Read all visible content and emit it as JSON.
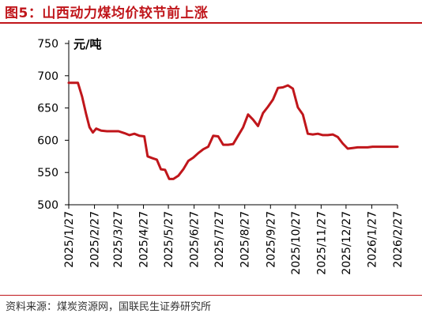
{
  "title": "图5：山西动力煤均价较节前上涨",
  "source": "资料来源：煤炭资源网，国联民生证券研究所",
  "colors": {
    "title": "#c0161b",
    "series": "#c0161b"
  },
  "chart_data": {
    "type": "line",
    "ylabel": "元/吨",
    "ylim": [
      500,
      750
    ],
    "yticks": [
      500,
      550,
      600,
      650,
      700,
      750
    ],
    "xlim": [
      "2025-01-27",
      "2026-02-27"
    ],
    "xtick_labels": [
      "2025/1/27",
      "2025/2/27",
      "2025/3/27",
      "2025/4/27",
      "2025/5/27",
      "2025/6/27",
      "2025/7/27",
      "2025/8/27",
      "2025/9/27",
      "2025/10/27",
      "2025/11/27",
      "2025/12/27",
      "2026/1/27",
      "2026/2/27"
    ],
    "grid": false,
    "legend": false,
    "series": [
      {
        "x": [
          "2025-01-27",
          "2025-02-03",
          "2025-02-07",
          "2025-02-12",
          "2025-02-17",
          "2025-02-21",
          "2025-02-25",
          "2025-03-01",
          "2025-03-07",
          "2025-03-14",
          "2025-03-21",
          "2025-03-28",
          "2025-04-04",
          "2025-04-10",
          "2025-04-16",
          "2025-04-22",
          "2025-04-28",
          "2025-05-02",
          "2025-05-08",
          "2025-05-13",
          "2025-05-18",
          "2025-05-23",
          "2025-05-28",
          "2025-06-02",
          "2025-06-08",
          "2025-06-14",
          "2025-06-20",
          "2025-06-26",
          "2025-07-02",
          "2025-07-08",
          "2025-07-14",
          "2025-07-20",
          "2025-07-26",
          "2025-08-01",
          "2025-08-07",
          "2025-08-13",
          "2025-08-19",
          "2025-08-25",
          "2025-08-31",
          "2025-09-06",
          "2025-09-12",
          "2025-09-18",
          "2025-09-24",
          "2025-09-30",
          "2025-10-06",
          "2025-10-12",
          "2025-10-18",
          "2025-10-24",
          "2025-10-30",
          "2025-11-05",
          "2025-11-11",
          "2025-11-17",
          "2025-11-23",
          "2025-11-29",
          "2025-12-05",
          "2025-12-11",
          "2025-12-17",
          "2025-12-23",
          "2025-12-29",
          "2026-01-04",
          "2026-01-10",
          "2026-01-16",
          "2026-01-22",
          "2026-01-28",
          "2026-02-03",
          "2026-02-09",
          "2026-02-15",
          "2026-02-21",
          "2026-02-27"
        ],
        "y": [
          689,
          689,
          689,
          668,
          640,
          620,
          612,
          618,
          615,
          614,
          614,
          614,
          611,
          608,
          610,
          607,
          606,
          575,
          572,
          570,
          555,
          554,
          540,
          540,
          545,
          555,
          568,
          573,
          580,
          586,
          590,
          607,
          606,
          593,
          593,
          594,
          607,
          620,
          640,
          632,
          622,
          642,
          652,
          663,
          681,
          682,
          685,
          680,
          651,
          640,
          610,
          609,
          610,
          608,
          608,
          609,
          605,
          595,
          587,
          588,
          589,
          589,
          589,
          590,
          590,
          590,
          590,
          590,
          590
        ]
      }
    ]
  }
}
